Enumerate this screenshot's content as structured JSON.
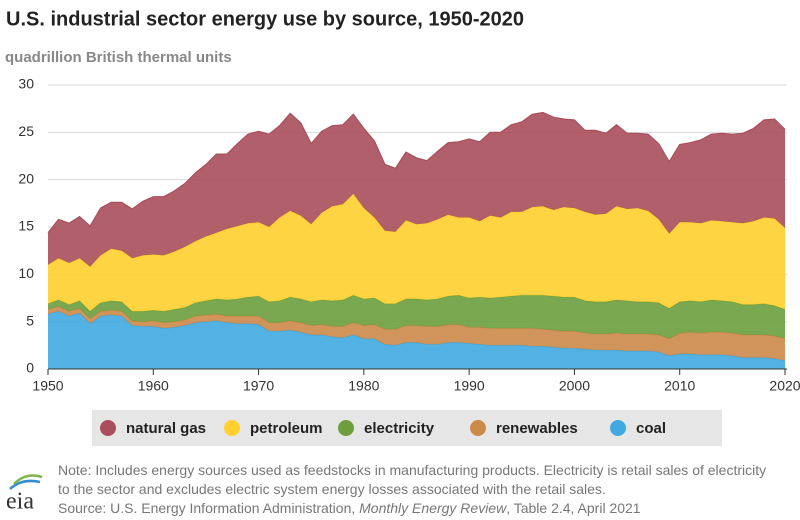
{
  "chart_data": {
    "type": "stacked-area",
    "title": "U.S. industrial sector energy use by source, 1950-2020",
    "subtitle": "quadrillion British thermal units",
    "x": [
      1950,
      1951,
      1952,
      1953,
      1954,
      1955,
      1956,
      1957,
      1958,
      1959,
      1960,
      1961,
      1962,
      1963,
      1964,
      1965,
      1966,
      1967,
      1968,
      1969,
      1970,
      1971,
      1972,
      1973,
      1974,
      1975,
      1976,
      1977,
      1978,
      1979,
      1980,
      1981,
      1982,
      1983,
      1984,
      1985,
      1986,
      1987,
      1988,
      1989,
      1990,
      1991,
      1992,
      1993,
      1994,
      1995,
      1996,
      1997,
      1998,
      1999,
      2000,
      2001,
      2002,
      2003,
      2004,
      2005,
      2006,
      2007,
      2008,
      2009,
      2010,
      2011,
      2012,
      2013,
      2014,
      2015,
      2016,
      2017,
      2018,
      2019,
      2020
    ],
    "series": [
      {
        "name": "coal",
        "color": "#40a9e0",
        "values": [
          5.8,
          6.1,
          5.6,
          5.9,
          4.8,
          5.6,
          5.7,
          5.6,
          4.6,
          4.5,
          4.5,
          4.3,
          4.4,
          4.6,
          4.9,
          5.0,
          5.1,
          4.9,
          4.8,
          4.8,
          4.7,
          4.0,
          4.0,
          4.1,
          3.9,
          3.6,
          3.6,
          3.4,
          3.3,
          3.6,
          3.2,
          3.2,
          2.6,
          2.5,
          2.8,
          2.8,
          2.6,
          2.6,
          2.8,
          2.8,
          2.7,
          2.6,
          2.5,
          2.5,
          2.5,
          2.5,
          2.4,
          2.4,
          2.3,
          2.2,
          2.2,
          2.1,
          2.0,
          2.0,
          2.0,
          1.9,
          1.9,
          1.9,
          1.8,
          1.4,
          1.6,
          1.6,
          1.5,
          1.5,
          1.5,
          1.4,
          1.2,
          1.2,
          1.2,
          1.1,
          0.9
        ]
      },
      {
        "name": "renewables",
        "color": "#cc8a4a",
        "values": [
          0.5,
          0.5,
          0.5,
          0.5,
          0.5,
          0.5,
          0.5,
          0.5,
          0.5,
          0.5,
          0.6,
          0.6,
          0.6,
          0.6,
          0.7,
          0.7,
          0.7,
          0.7,
          0.8,
          0.8,
          0.9,
          0.9,
          0.9,
          1.0,
          1.0,
          1.0,
          1.1,
          1.1,
          1.2,
          1.3,
          1.4,
          1.5,
          1.6,
          1.7,
          1.8,
          1.8,
          1.9,
          1.9,
          1.9,
          1.9,
          1.7,
          1.8,
          1.8,
          1.8,
          1.8,
          1.8,
          1.9,
          1.8,
          1.8,
          1.8,
          1.8,
          1.7,
          1.7,
          1.7,
          1.8,
          1.8,
          1.8,
          1.8,
          1.8,
          1.8,
          2.2,
          2.3,
          2.3,
          2.4,
          2.4,
          2.4,
          2.4,
          2.4,
          2.4,
          2.4,
          2.3
        ]
      },
      {
        "name": "electricity",
        "color": "#6b9e3d",
        "values": [
          0.6,
          0.7,
          0.7,
          0.8,
          0.8,
          0.9,
          1.0,
          1.0,
          1.0,
          1.1,
          1.1,
          1.2,
          1.3,
          1.3,
          1.4,
          1.5,
          1.6,
          1.7,
          1.8,
          2.0,
          2.1,
          2.2,
          2.3,
          2.5,
          2.5,
          2.5,
          2.6,
          2.7,
          2.8,
          2.9,
          2.8,
          2.8,
          2.7,
          2.7,
          2.8,
          2.8,
          2.8,
          2.9,
          3.0,
          3.1,
          3.1,
          3.2,
          3.2,
          3.3,
          3.4,
          3.5,
          3.5,
          3.6,
          3.6,
          3.6,
          3.6,
          3.4,
          3.4,
          3.4,
          3.5,
          3.5,
          3.4,
          3.4,
          3.4,
          3.2,
          3.3,
          3.3,
          3.3,
          3.4,
          3.3,
          3.3,
          3.2,
          3.2,
          3.3,
          3.2,
          3.1
        ]
      },
      {
        "name": "petroleum",
        "color": "#ffcf2d",
        "values": [
          4.1,
          4.4,
          4.4,
          4.5,
          4.7,
          5.0,
          5.5,
          5.4,
          5.6,
          5.9,
          5.9,
          5.9,
          6.1,
          6.4,
          6.5,
          6.8,
          7.0,
          7.5,
          7.7,
          7.8,
          7.8,
          7.9,
          8.8,
          9.1,
          8.8,
          8.2,
          9.2,
          10.0,
          10.1,
          10.7,
          9.6,
          8.5,
          7.7,
          7.6,
          8.3,
          7.9,
          8.1,
          8.4,
          8.6,
          8.2,
          8.5,
          8.0,
          8.7,
          8.4,
          8.9,
          8.8,
          9.3,
          9.4,
          9.1,
          9.5,
          9.4,
          9.4,
          9.2,
          9.3,
          9.9,
          9.7,
          9.9,
          9.6,
          8.8,
          7.9,
          8.4,
          8.3,
          8.3,
          8.4,
          8.4,
          8.4,
          8.6,
          8.8,
          9.1,
          9.2,
          8.6
        ]
      },
      {
        "name": "natural gas",
        "color": "#a94f5b",
        "values": [
          3.4,
          4.1,
          4.2,
          4.4,
          4.3,
          5.0,
          4.9,
          5.1,
          5.2,
          5.7,
          6.1,
          6.2,
          6.4,
          6.7,
          7.2,
          7.6,
          8.3,
          7.9,
          8.7,
          9.4,
          9.6,
          9.8,
          9.7,
          10.3,
          9.8,
          8.5,
          8.6,
          8.5,
          8.4,
          8.4,
          8.4,
          8.1,
          7.0,
          6.7,
          7.2,
          7.0,
          6.6,
          7.2,
          7.6,
          8.0,
          8.3,
          8.4,
          8.8,
          9.0,
          9.2,
          9.5,
          9.8,
          9.9,
          9.8,
          9.3,
          9.3,
          8.6,
          8.9,
          8.5,
          8.6,
          8.0,
          7.9,
          8.1,
          8.0,
          7.6,
          8.2,
          8.4,
          8.8,
          9.1,
          9.3,
          9.3,
          9.5,
          9.8,
          10.3,
          10.5,
          10.4
        ]
      }
    ],
    "legend_order": [
      4,
      3,
      2,
      1,
      0
    ],
    "xlim": [
      1950,
      2020
    ],
    "xticks": [
      1950,
      1960,
      1970,
      1980,
      1990,
      2000,
      2010,
      2020
    ],
    "ylim": [
      0,
      30
    ],
    "yticks": [
      0,
      5,
      10,
      15,
      20,
      25,
      30
    ],
    "grid": true,
    "note": "Note: Includes energy sources used as feedstocks in manufacturing products. Electricity is retail sales of electricity to the sector and excludes electric system energy losses associated with the retail sales.",
    "source": {
      "prefix": "Source: U.S. Energy Information Administration, ",
      "italic": "Monthly Energy Review",
      "suffix": ", Table 2.4, April 2021"
    },
    "logo": "eia"
  }
}
